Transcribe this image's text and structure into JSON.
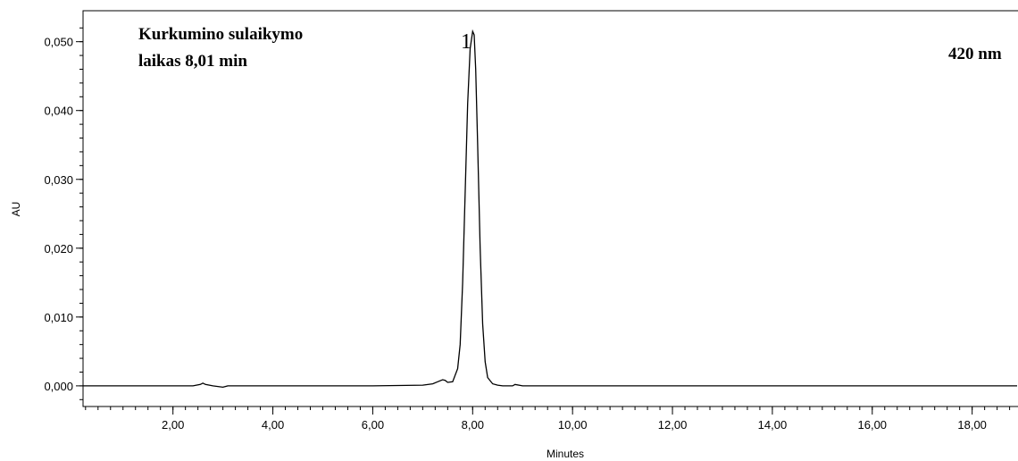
{
  "chart_data": {
    "type": "line",
    "title": "",
    "xlabel": "Minutes",
    "ylabel": "AU",
    "xlim": [
      0.2,
      18.9
    ],
    "ylim": [
      -0.003,
      0.0545
    ],
    "x_ticks": [
      2.0,
      4.0,
      6.0,
      8.0,
      10.0,
      12.0,
      14.0,
      16.0,
      18.0
    ],
    "x_tick_labels": [
      "2,00",
      "4,00",
      "6,00",
      "8,00",
      "10,00",
      "12,00",
      "14,00",
      "16,00",
      "18,00"
    ],
    "y_ticks": [
      0.0,
      0.01,
      0.02,
      0.03,
      0.04,
      0.05
    ],
    "y_tick_labels": [
      "0,000",
      "0,010",
      "0,020",
      "0,030",
      "0,040",
      "0,050"
    ],
    "grid": false,
    "annotations": {
      "retention_line1": "Kurkumino sulaikymo",
      "retention_line2": "laikas 8,01 min",
      "wavelength": "420  nm",
      "peak_label": "1"
    },
    "series": [
      {
        "x": [
          0.2,
          2.4,
          2.55,
          2.6,
          2.65,
          2.8,
          3.0,
          3.1,
          4.0,
          6.0,
          7.0,
          7.2,
          7.3,
          7.4,
          7.45,
          7.5,
          7.6,
          7.7,
          7.75,
          7.8,
          7.85,
          7.9,
          7.95,
          8.0,
          8.03,
          8.06,
          8.1,
          8.15,
          8.2,
          8.25,
          8.3,
          8.4,
          8.5,
          8.6,
          8.8,
          8.85,
          9.0,
          10.0,
          12.0,
          14.0,
          16.0,
          18.0,
          18.9
        ],
        "y": [
          0.0,
          0.0,
          0.0002,
          0.0004,
          0.0002,
          0.0,
          -0.0002,
          0.0,
          0.0,
          0.0,
          0.0001,
          0.0003,
          0.0006,
          0.0009,
          0.0008,
          0.0005,
          0.0006,
          0.0025,
          0.006,
          0.015,
          0.028,
          0.041,
          0.049,
          0.0515,
          0.051,
          0.046,
          0.035,
          0.02,
          0.009,
          0.0035,
          0.0012,
          0.0003,
          0.0001,
          0.0,
          0.0,
          0.0002,
          0.0,
          0.0,
          0.0,
          0.0,
          0.0,
          0.0,
          0.0
        ]
      }
    ]
  }
}
